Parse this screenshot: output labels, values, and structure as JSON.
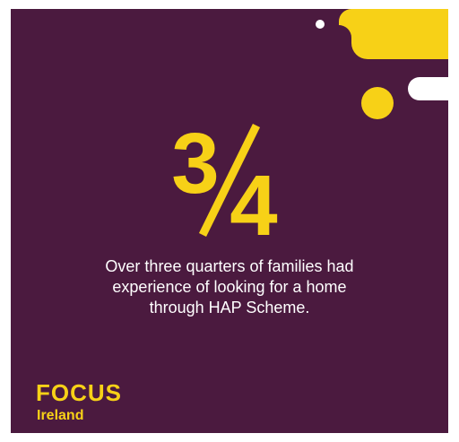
{
  "fraction": {
    "numerator": "3",
    "denominator": "4"
  },
  "caption": {
    "lines": [
      "Over three quarters of families had",
      "experience of looking for a home",
      "through HAP Scheme."
    ]
  },
  "logo": {
    "name": "FOCUS",
    "subtitle": "Ireland"
  }
}
